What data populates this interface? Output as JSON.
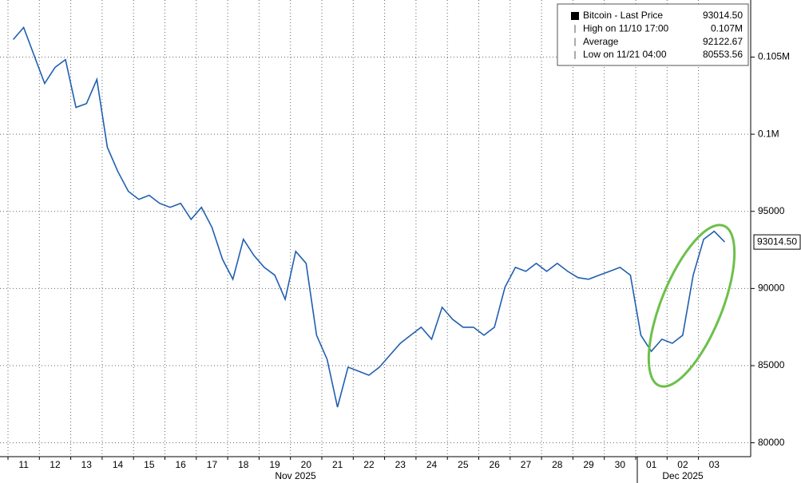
{
  "chart_data": {
    "type": "line",
    "categories": [
      null,
      "11",
      null,
      null,
      "12",
      null,
      null,
      "13",
      null,
      null,
      "14",
      null,
      null,
      "15",
      null,
      null,
      "16",
      null,
      null,
      "17",
      null,
      null,
      "18",
      null,
      null,
      "19",
      null,
      null,
      "20",
      null,
      null,
      "21",
      null,
      null,
      "22",
      null,
      null,
      "23",
      null,
      null,
      "24",
      null,
      null,
      "25",
      null,
      null,
      "26",
      null,
      null,
      "27",
      null,
      null,
      "28",
      null,
      null,
      "29",
      null,
      null,
      "30",
      null,
      null,
      "01",
      null,
      null,
      "02",
      null,
      null,
      "03",
      null
    ],
    "x_month_labels": [
      "Nov 2025",
      "Dec 2025"
    ],
    "series": [
      {
        "name": "Bitcoin - Last Price",
        "color": "#1f5fb0",
        "values": [
          106140,
          106920,
          105100,
          103290,
          104330,
          104840,
          101740,
          101990,
          103550,
          99150,
          97590,
          96300,
          95780,
          96040,
          95520,
          95260,
          95520,
          94480,
          95260,
          93960,
          91890,
          90600,
          93190,
          92150,
          91370,
          90860,
          89300,
          92410,
          91630,
          86970,
          85410,
          82310,
          84900,
          84640,
          84380,
          84900,
          85670,
          86450,
          86970,
          87490,
          86710,
          88780,
          88000,
          87490,
          87490,
          86970,
          87490,
          90080,
          91370,
          91110,
          91630,
          91110,
          91630,
          91110,
          90700,
          90600,
          90860,
          91110,
          91370,
          90860,
          86970,
          85930,
          86710,
          86450,
          86970,
          90860,
          93190,
          93710,
          93014.5
        ]
      }
    ],
    "ylim": [
      79100,
      108700
    ],
    "yticks": [
      80000,
      85000,
      90000,
      95000,
      {
        "value": 100000,
        "label": "0.1M"
      },
      {
        "value": 105000,
        "label": "0.105M"
      }
    ],
    "grid": true,
    "last_price": {
      "value": 93014.5,
      "label": "93014.50"
    },
    "legend": [
      {
        "name": "Bitcoin - Last Price",
        "text": "93014.50"
      },
      {
        "name": "High on 11/10 17:00",
        "text": "0.107M"
      },
      {
        "name": "Average",
        "text": "92122.67"
      },
      {
        "name": "Low on 11/21 04:00",
        "text": "80553.56"
      }
    ]
  }
}
